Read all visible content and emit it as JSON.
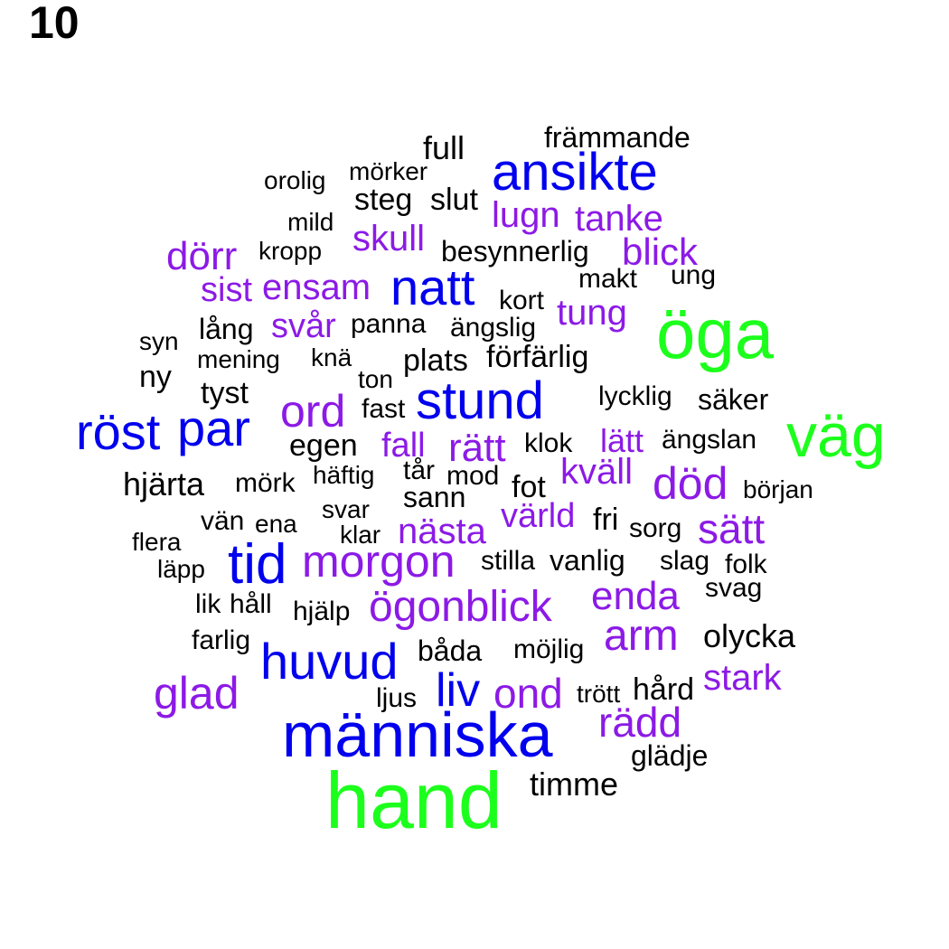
{
  "panel_label": "10",
  "palette": {
    "green": "#1cff1c",
    "blue": "#0000ee",
    "purple": "#8c1ae6",
    "black": "#000000"
  },
  "words": [
    {
      "text": "hand",
      "group": "green"
    },
    {
      "text": "öga",
      "group": "green"
    },
    {
      "text": "väg",
      "group": "green"
    },
    {
      "text": "människa",
      "group": "blue"
    },
    {
      "text": "ansikte",
      "group": "blue"
    },
    {
      "text": "natt",
      "group": "blue"
    },
    {
      "text": "stund",
      "group": "blue"
    },
    {
      "text": "röst",
      "group": "blue"
    },
    {
      "text": "par",
      "group": "blue"
    },
    {
      "text": "tid",
      "group": "blue"
    },
    {
      "text": "huvud",
      "group": "blue"
    },
    {
      "text": "liv",
      "group": "blue"
    },
    {
      "text": "glad",
      "group": "purple"
    },
    {
      "text": "ond",
      "group": "purple"
    },
    {
      "text": "rädd",
      "group": "purple"
    },
    {
      "text": "stark",
      "group": "purple"
    },
    {
      "text": "arm",
      "group": "purple"
    },
    {
      "text": "ögonblick",
      "group": "purple"
    },
    {
      "text": "enda",
      "group": "purple"
    },
    {
      "text": "morgon",
      "group": "purple"
    },
    {
      "text": "nästa",
      "group": "purple"
    },
    {
      "text": "värld",
      "group": "purple"
    },
    {
      "text": "sätt",
      "group": "purple"
    },
    {
      "text": "död",
      "group": "purple"
    },
    {
      "text": "kväll",
      "group": "purple"
    },
    {
      "text": "lätt",
      "group": "purple"
    },
    {
      "text": "fall",
      "group": "purple"
    },
    {
      "text": "rätt",
      "group": "purple"
    },
    {
      "text": "ord",
      "group": "purple"
    },
    {
      "text": "svår",
      "group": "purple"
    },
    {
      "text": "tung",
      "group": "purple"
    },
    {
      "text": "sist",
      "group": "purple"
    },
    {
      "text": "ensam",
      "group": "purple"
    },
    {
      "text": "dörr",
      "group": "purple"
    },
    {
      "text": "skull",
      "group": "purple"
    },
    {
      "text": "lugn",
      "group": "purple"
    },
    {
      "text": "tanke",
      "group": "purple"
    },
    {
      "text": "blick",
      "group": "purple"
    },
    {
      "text": "främmande",
      "group": "black"
    },
    {
      "text": "full",
      "group": "black"
    },
    {
      "text": "orolig",
      "group": "black"
    },
    {
      "text": "mörker",
      "group": "black"
    },
    {
      "text": "steg",
      "group": "black"
    },
    {
      "text": "slut",
      "group": "black"
    },
    {
      "text": "mild",
      "group": "black"
    },
    {
      "text": "kropp",
      "group": "black"
    },
    {
      "text": "besynnerlig",
      "group": "black"
    },
    {
      "text": "makt",
      "group": "black"
    },
    {
      "text": "ung",
      "group": "black"
    },
    {
      "text": "kort",
      "group": "black"
    },
    {
      "text": "lång",
      "group": "black"
    },
    {
      "text": "panna",
      "group": "black"
    },
    {
      "text": "ängslig",
      "group": "black"
    },
    {
      "text": "syn",
      "group": "black"
    },
    {
      "text": "mening",
      "group": "black"
    },
    {
      "text": "knä",
      "group": "black"
    },
    {
      "text": "plats",
      "group": "black"
    },
    {
      "text": "förfärlig",
      "group": "black"
    },
    {
      "text": "ny",
      "group": "black"
    },
    {
      "text": "ton",
      "group": "black"
    },
    {
      "text": "tyst",
      "group": "black"
    },
    {
      "text": "lycklig",
      "group": "black"
    },
    {
      "text": "säker",
      "group": "black"
    },
    {
      "text": "fast",
      "group": "black"
    },
    {
      "text": "egen",
      "group": "black"
    },
    {
      "text": "klok",
      "group": "black"
    },
    {
      "text": "ängslan",
      "group": "black"
    },
    {
      "text": "hjärta",
      "group": "black"
    },
    {
      "text": "mörk",
      "group": "black"
    },
    {
      "text": "häftig",
      "group": "black"
    },
    {
      "text": "tår",
      "group": "black"
    },
    {
      "text": "mod",
      "group": "black"
    },
    {
      "text": "sann",
      "group": "black"
    },
    {
      "text": "fot",
      "group": "black"
    },
    {
      "text": "början",
      "group": "black"
    },
    {
      "text": "vän",
      "group": "black"
    },
    {
      "text": "ena",
      "group": "black"
    },
    {
      "text": "svar",
      "group": "black"
    },
    {
      "text": "klar",
      "group": "black"
    },
    {
      "text": "fri",
      "group": "black"
    },
    {
      "text": "sorg",
      "group": "black"
    },
    {
      "text": "flera",
      "group": "black"
    },
    {
      "text": "läpp",
      "group": "black"
    },
    {
      "text": "stilla",
      "group": "black"
    },
    {
      "text": "vanlig",
      "group": "black"
    },
    {
      "text": "slag",
      "group": "black"
    },
    {
      "text": "folk",
      "group": "black"
    },
    {
      "text": "svag",
      "group": "black"
    },
    {
      "text": "lik",
      "group": "black"
    },
    {
      "text": "håll",
      "group": "black"
    },
    {
      "text": "hjälp",
      "group": "black"
    },
    {
      "text": "farlig",
      "group": "black"
    },
    {
      "text": "båda",
      "group": "black"
    },
    {
      "text": "möjlig",
      "group": "black"
    },
    {
      "text": "olycka",
      "group": "black"
    },
    {
      "text": "ljus",
      "group": "black"
    },
    {
      "text": "trött",
      "group": "black"
    },
    {
      "text": "hård",
      "group": "black"
    },
    {
      "text": "glädje",
      "group": "black"
    },
    {
      "text": "timme",
      "group": "black"
    }
  ]
}
